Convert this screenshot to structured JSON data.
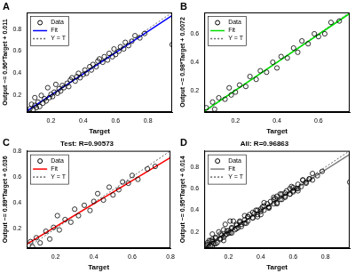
{
  "chart_data": [
    {
      "type": "scatter",
      "annotation": "A",
      "x_label": "Target",
      "y_label": "Output ~= 0.96*Target + 0.011",
      "xlim": [
        0.05,
        0.95
      ],
      "ylim": [
        0.05,
        0.95
      ],
      "xticks": [
        0.2,
        0.4,
        0.6,
        0.8
      ],
      "yticks": [
        0.2,
        0.4,
        0.6,
        0.8
      ],
      "grid": false,
      "legend": "top-left",
      "series": [
        {
          "name": "Data",
          "type": "scatter",
          "color": "#000000",
          "marker": "circle",
          "x": [
            0.07,
            0.08,
            0.09,
            0.1,
            0.1,
            0.11,
            0.12,
            0.13,
            0.14,
            0.15,
            0.16,
            0.17,
            0.18,
            0.19,
            0.2,
            0.21,
            0.22,
            0.23,
            0.24,
            0.25,
            0.26,
            0.27,
            0.28,
            0.3,
            0.31,
            0.32,
            0.33,
            0.35,
            0.36,
            0.37,
            0.38,
            0.4,
            0.41,
            0.42,
            0.44,
            0.45,
            0.46,
            0.48,
            0.49,
            0.5,
            0.52,
            0.53,
            0.55,
            0.56,
            0.58,
            0.59,
            0.6,
            0.62,
            0.63,
            0.65,
            0.66,
            0.68,
            0.7,
            0.72,
            0.75,
            0.78,
            0.95
          ],
          "values": [
            0.08,
            0.12,
            0.07,
            0.11,
            0.18,
            0.09,
            0.14,
            0.1,
            0.2,
            0.13,
            0.17,
            0.15,
            0.27,
            0.18,
            0.21,
            0.19,
            0.23,
            0.3,
            0.22,
            0.26,
            0.24,
            0.29,
            0.27,
            0.31,
            0.28,
            0.34,
            0.36,
            0.33,
            0.37,
            0.4,
            0.36,
            0.39,
            0.43,
            0.4,
            0.46,
            0.43,
            0.48,
            0.46,
            0.51,
            0.53,
            0.5,
            0.55,
            0.52,
            0.58,
            0.55,
            0.62,
            0.57,
            0.6,
            0.64,
            0.62,
            0.68,
            0.65,
            0.69,
            0.74,
            0.72,
            0.76,
            0.66
          ]
        },
        {
          "name": "Fit",
          "type": "line",
          "color": "#0000ff",
          "line_style": "solid",
          "x": [
            0.05,
            0.95
          ],
          "values": [
            0.059,
            0.923
          ]
        },
        {
          "name": "Y = T",
          "type": "line",
          "color": "#666666",
          "line_style": "dotted",
          "x": [
            0.05,
            0.95
          ],
          "values": [
            0.05,
            0.95
          ]
        }
      ]
    },
    {
      "type": "scatter",
      "annotation": "B",
      "x_label": "Target",
      "y_label": "Output ~= 0.98*Target + 0.0072",
      "xlim": [
        0.05,
        0.75
      ],
      "ylim": [
        0.05,
        0.75
      ],
      "xticks": [
        0.2,
        0.4,
        0.6
      ],
      "yticks": [
        0.2,
        0.4,
        0.6
      ],
      "grid": false,
      "legend": "top-left",
      "series": [
        {
          "name": "Data",
          "type": "scatter",
          "color": "#000000",
          "marker": "circle",
          "x": [
            0.06,
            0.09,
            0.1,
            0.12,
            0.15,
            0.17,
            0.18,
            0.2,
            0.22,
            0.25,
            0.27,
            0.3,
            0.32,
            0.35,
            0.38,
            0.4,
            0.42,
            0.45,
            0.48,
            0.5,
            0.52,
            0.55,
            0.58,
            0.6,
            0.63,
            0.66,
            0.7
          ],
          "values": [
            0.08,
            0.12,
            0.07,
            0.15,
            0.14,
            0.22,
            0.17,
            0.19,
            0.24,
            0.23,
            0.3,
            0.28,
            0.34,
            0.33,
            0.4,
            0.36,
            0.44,
            0.43,
            0.5,
            0.47,
            0.55,
            0.53,
            0.6,
            0.58,
            0.6,
            0.68,
            0.69
          ]
        },
        {
          "name": "Fit",
          "type": "line",
          "color": "#00dd00",
          "line_style": "solid",
          "x": [
            0.05,
            0.75
          ],
          "values": [
            0.0562,
            0.7422
          ]
        },
        {
          "name": "Y = T",
          "type": "line",
          "color": "#666666",
          "line_style": "dotted",
          "x": [
            0.05,
            0.75
          ],
          "values": [
            0.05,
            0.75
          ]
        }
      ]
    },
    {
      "type": "scatter",
      "annotation": "C",
      "title": "Test: R=0.90573",
      "x_label": "Target",
      "y_label": "Output ~= 0.89*Target + 0.036",
      "xlim": [
        0.05,
        0.8
      ],
      "ylim": [
        0.05,
        0.8
      ],
      "xticks": [
        0.2,
        0.4,
        0.6,
        0.8
      ],
      "yticks": [
        0.2,
        0.4,
        0.6,
        0.8
      ],
      "grid": false,
      "legend": "top-left",
      "series": [
        {
          "name": "Data",
          "type": "scatter",
          "color": "#000000",
          "marker": "circle",
          "x": [
            0.07,
            0.08,
            0.1,
            0.12,
            0.15,
            0.17,
            0.19,
            0.21,
            0.22,
            0.25,
            0.28,
            0.3,
            0.32,
            0.35,
            0.38,
            0.4,
            0.42,
            0.45,
            0.48,
            0.5,
            0.53,
            0.55,
            0.58,
            0.6,
            0.63,
            0.68,
            0.72
          ],
          "values": [
            0.1,
            0.06,
            0.13,
            0.09,
            0.18,
            0.12,
            0.21,
            0.3,
            0.19,
            0.27,
            0.25,
            0.35,
            0.3,
            0.38,
            0.34,
            0.41,
            0.47,
            0.42,
            0.52,
            0.46,
            0.5,
            0.56,
            0.55,
            0.61,
            0.58,
            0.66,
            0.68
          ]
        },
        {
          "name": "Fit",
          "type": "line",
          "color": "#ff0000",
          "line_style": "solid",
          "x": [
            0.05,
            0.8
          ],
          "values": [
            0.0805,
            0.748
          ]
        },
        {
          "name": "Y = T",
          "type": "line",
          "color": "#666666",
          "line_style": "dotted",
          "x": [
            0.05,
            0.8
          ],
          "values": [
            0.05,
            0.8
          ]
        }
      ]
    },
    {
      "type": "scatter",
      "annotation": "D",
      "title": "All: R=0.96863",
      "x_label": "Target",
      "y_label": "Output ~= 0.95*Target + 0.014",
      "xlim": [
        0.05,
        0.95
      ],
      "ylim": [
        0.05,
        0.95
      ],
      "xticks": [
        0.2,
        0.4,
        0.6,
        0.8
      ],
      "yticks": [
        0.2,
        0.4,
        0.6,
        0.8
      ],
      "grid": false,
      "legend": "top-left",
      "series": [
        {
          "name": "Data",
          "type": "scatter",
          "color": "#000000",
          "marker": "circle",
          "x": [
            0.07,
            0.08,
            0.09,
            0.1,
            0.1,
            0.11,
            0.12,
            0.13,
            0.14,
            0.15,
            0.16,
            0.17,
            0.18,
            0.19,
            0.2,
            0.21,
            0.22,
            0.23,
            0.24,
            0.25,
            0.26,
            0.27,
            0.28,
            0.3,
            0.31,
            0.32,
            0.33,
            0.35,
            0.36,
            0.37,
            0.38,
            0.4,
            0.41,
            0.42,
            0.44,
            0.45,
            0.46,
            0.48,
            0.49,
            0.5,
            0.52,
            0.53,
            0.55,
            0.56,
            0.58,
            0.59,
            0.6,
            0.62,
            0.63,
            0.65,
            0.66,
            0.68,
            0.7,
            0.72,
            0.75,
            0.78,
            0.95,
            0.06,
            0.09,
            0.1,
            0.12,
            0.15,
            0.17,
            0.18,
            0.2,
            0.22,
            0.25,
            0.27,
            0.3,
            0.32,
            0.35,
            0.38,
            0.4,
            0.42,
            0.45,
            0.48,
            0.5,
            0.52,
            0.55,
            0.58,
            0.6,
            0.63,
            0.66,
            0.7,
            0.07,
            0.08,
            0.1,
            0.12,
            0.15,
            0.17,
            0.19,
            0.21,
            0.22,
            0.25,
            0.28,
            0.3,
            0.32,
            0.35,
            0.38,
            0.4,
            0.42,
            0.45,
            0.48,
            0.5,
            0.53,
            0.55,
            0.58,
            0.6,
            0.63,
            0.68,
            0.72
          ],
          "values": [
            0.08,
            0.12,
            0.07,
            0.11,
            0.18,
            0.09,
            0.14,
            0.1,
            0.2,
            0.13,
            0.17,
            0.15,
            0.27,
            0.18,
            0.21,
            0.19,
            0.23,
            0.3,
            0.22,
            0.26,
            0.24,
            0.29,
            0.27,
            0.31,
            0.28,
            0.34,
            0.36,
            0.33,
            0.37,
            0.4,
            0.36,
            0.39,
            0.43,
            0.4,
            0.46,
            0.43,
            0.48,
            0.46,
            0.51,
            0.53,
            0.5,
            0.55,
            0.52,
            0.58,
            0.55,
            0.62,
            0.57,
            0.6,
            0.64,
            0.62,
            0.68,
            0.65,
            0.69,
            0.74,
            0.72,
            0.76,
            0.66,
            0.08,
            0.12,
            0.07,
            0.15,
            0.14,
            0.22,
            0.17,
            0.19,
            0.24,
            0.23,
            0.3,
            0.28,
            0.34,
            0.33,
            0.4,
            0.36,
            0.44,
            0.43,
            0.5,
            0.47,
            0.55,
            0.53,
            0.6,
            0.58,
            0.6,
            0.68,
            0.69,
            0.1,
            0.06,
            0.13,
            0.09,
            0.18,
            0.12,
            0.21,
            0.3,
            0.19,
            0.27,
            0.25,
            0.35,
            0.3,
            0.38,
            0.34,
            0.41,
            0.47,
            0.42,
            0.52,
            0.46,
            0.5,
            0.56,
            0.55,
            0.61,
            0.58,
            0.66,
            0.68
          ]
        },
        {
          "name": "Fit",
          "type": "line",
          "color": "#808080",
          "line_style": "solid",
          "x": [
            0.05,
            0.95
          ],
          "values": [
            0.0615,
            0.9165
          ]
        },
        {
          "name": "Y = T",
          "type": "line",
          "color": "#666666",
          "line_style": "dotted",
          "x": [
            0.05,
            0.95
          ],
          "values": [
            0.05,
            0.95
          ]
        }
      ]
    }
  ]
}
